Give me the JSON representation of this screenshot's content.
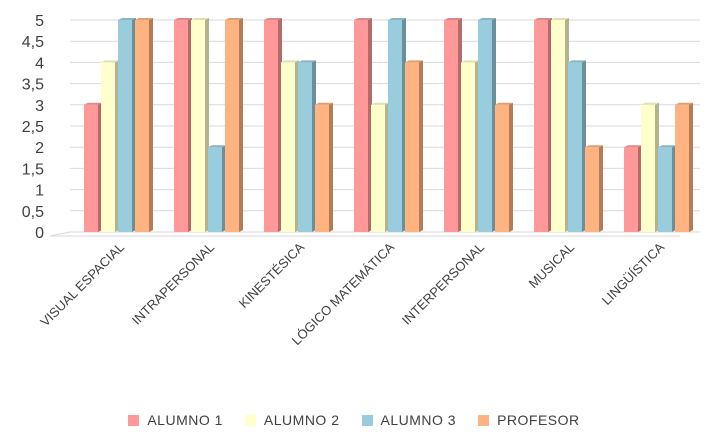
{
  "chart_data": {
    "type": "bar",
    "categories": [
      "VISUAL ESPACIAL",
      "INTRAPERSONAL",
      "KINESTÉSICA",
      "LÓGICO MATEMÁTICA",
      "INTERPERSONAL",
      "MUSICAL",
      "LINGÜÍSTICA"
    ],
    "series": [
      {
        "name": "ALUMNO 1",
        "color": "#ff9999",
        "values": [
          3,
          5,
          5,
          5,
          5,
          5,
          2
        ]
      },
      {
        "name": "ALUMNO 2",
        "color": "#ffffcc",
        "values": [
          4,
          5,
          4,
          3,
          4,
          5,
          3
        ]
      },
      {
        "name": "ALUMNO 3",
        "color": "#99ccdd",
        "values": [
          5,
          2,
          4,
          5,
          5,
          4,
          2
        ]
      },
      {
        "name": "PROFESOR",
        "color": "#ffb380",
        "values": [
          5,
          5,
          3,
          4,
          3,
          2,
          3
        ]
      }
    ],
    "yticks": [
      "0",
      "0,5",
      "1",
      "1,5",
      "2",
      "2,5",
      "3",
      "3,5",
      "4",
      "4,5",
      "5"
    ],
    "ylim": [
      0,
      5
    ],
    "grid": true,
    "legend_position": "bottom",
    "three_d": true
  }
}
